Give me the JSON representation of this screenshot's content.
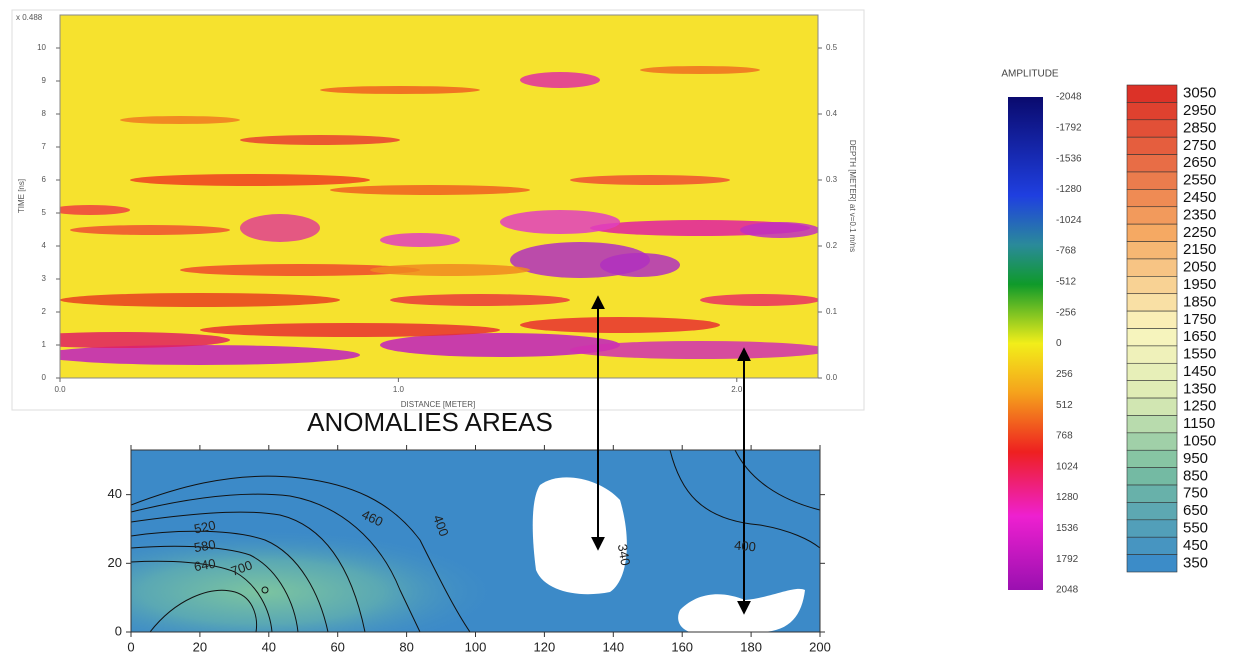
{
  "radargram": {
    "corner_label": "x 0.488",
    "y_label": "TIME [ns]",
    "x_label": "DISTANCE [METER]",
    "y2_label": "DEPTH [METER] at v=0.1 m/ns",
    "xlim": [
      0,
      2.24
    ],
    "xticks": [
      {
        "value": 0,
        "label": "0.0"
      },
      {
        "value": 1,
        "label": "1.0"
      },
      {
        "value": 2,
        "label": "2.0"
      }
    ],
    "ylim": [
      0,
      11
    ],
    "yticks": [
      0,
      1,
      2,
      3,
      4,
      5,
      6,
      7,
      8,
      9,
      10
    ],
    "y2lim": [
      0,
      0.55
    ],
    "y2ticks": [
      {
        "value": 0,
        "label": "0.0"
      },
      0.1,
      0.2,
      0.3,
      0.4,
      0.5
    ]
  },
  "contour": {
    "title": "ANOMALIES AREAS",
    "xlim": [
      0,
      200
    ],
    "xticks": [
      0,
      20,
      40,
      60,
      80,
      100,
      120,
      140,
      160,
      180,
      200
    ],
    "ylim": [
      0,
      53
    ],
    "yticks": [
      0,
      20,
      40
    ],
    "contour_labels": [
      520,
      580,
      640,
      700,
      460,
      400,
      340,
      400
    ]
  },
  "amplitude_colorbar": {
    "title": "AMPLITUDE",
    "ticks": [
      -2048,
      -1792,
      -1536,
      -1280,
      -1024,
      -768,
      -512,
      -256,
      0,
      256,
      512,
      768,
      1024,
      1280,
      1536,
      1792,
      2048
    ]
  },
  "contour_colorbar": {
    "ticks": [
      3050,
      2950,
      2850,
      2750,
      2650,
      2550,
      2450,
      2350,
      2250,
      2150,
      2050,
      1950,
      1850,
      1750,
      1650,
      1550,
      1450,
      1350,
      1250,
      1150,
      1050,
      950,
      850,
      750,
      650,
      550,
      450,
      350
    ]
  }
}
